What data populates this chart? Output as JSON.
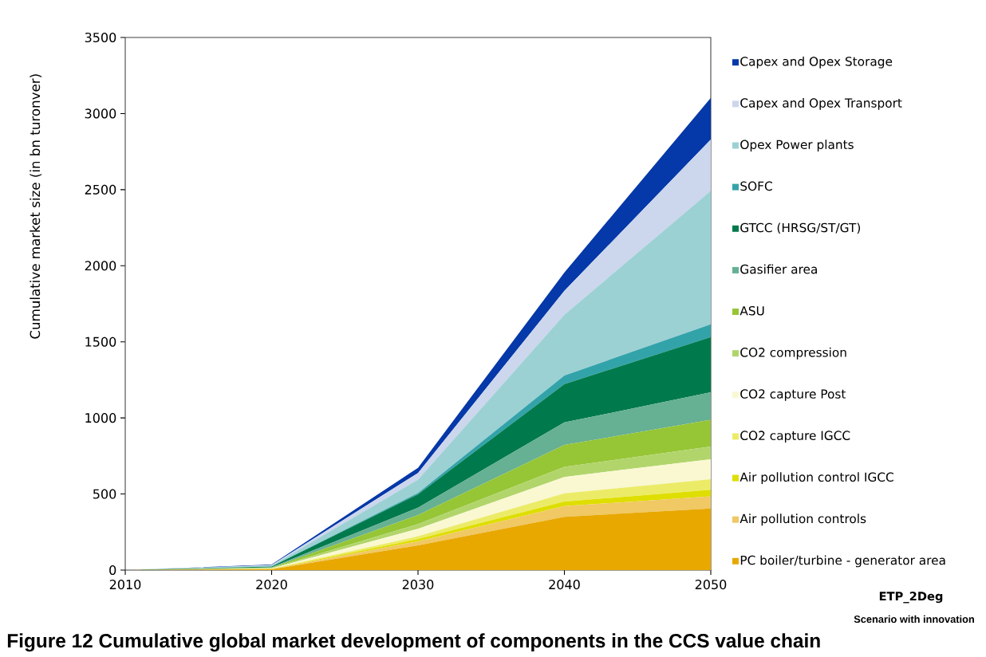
{
  "chart_data": {
    "type": "area",
    "stacked": true,
    "ylabel": "Cumulative market size (in bn turonver)",
    "annotations": [
      "Figure 12 Cumulative global market development of components in the CCS value chain",
      "ETP_2Deg",
      "Scenario with innovation"
    ],
    "x": [
      2010,
      2020,
      2030,
      2040,
      2050
    ],
    "xlim": [
      2010,
      2050
    ],
    "xticks": [
      2010,
      2020,
      2030,
      2040,
      2050
    ],
    "ylim": [
      0,
      3500
    ],
    "yticks": [
      0,
      500,
      1000,
      1500,
      2000,
      2500,
      3000,
      3500
    ],
    "legend": "right",
    "series": [
      {
        "name": "PC boiler/turbine - generator area",
        "color": "#e8a800",
        "values": [
          0,
          5,
          162,
          350,
          405
        ]
      },
      {
        "name": "Air pollution controls",
        "color": "#f0c864",
        "values": [
          0,
          2,
          27,
          70,
          79
        ]
      },
      {
        "name": "Air pollution control IGCC",
        "color": "#dede00",
        "values": [
          0,
          1,
          15,
          30,
          44
        ]
      },
      {
        "name": "CO2 capture IGCC",
        "color": "#eceb68",
        "values": [
          0,
          1,
          18,
          54,
          69
        ]
      },
      {
        "name": "CO2 capture Post",
        "color": "#faf8d1",
        "values": [
          0,
          2,
          49,
          108,
          131
        ]
      },
      {
        "name": "CO2 compression",
        "color": "#b1d56b",
        "values": [
          0,
          2,
          31,
          66,
          84
        ]
      },
      {
        "name": "ASU",
        "color": "#96c535",
        "values": [
          0,
          3,
          60,
          144,
          175
        ]
      },
      {
        "name": "Gasifier area",
        "color": "#66b093",
        "values": [
          0,
          2,
          48,
          148,
          181
        ]
      },
      {
        "name": "GTCC (HRSG/ST/GT)",
        "color": "#007a4c",
        "values": [
          0,
          5,
          88,
          252,
          363
        ]
      },
      {
        "name": "SOFC",
        "color": "#33a3aa",
        "values": [
          0,
          1,
          9,
          57,
          84
        ]
      },
      {
        "name": "Opex Power plants",
        "color": "#9cd1d4",
        "values": [
          0,
          5,
          87,
          399,
          877
        ]
      },
      {
        "name": "Capex and Opex Transport",
        "color": "#ccd6ec",
        "values": [
          0,
          4,
          44,
          157,
          337
        ]
      },
      {
        "name": "Capex and Opex Storage",
        "color": "#0538a8",
        "values": [
          0,
          3,
          34,
          121,
          274
        ]
      }
    ]
  }
}
